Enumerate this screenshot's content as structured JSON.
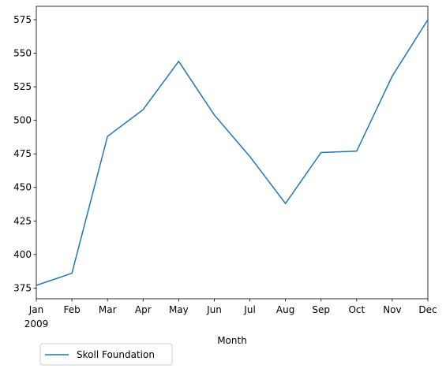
{
  "chart_data": {
    "type": "line",
    "categories": [
      "Jan",
      "Feb",
      "Mar",
      "Apr",
      "May",
      "Jun",
      "Jul",
      "Aug",
      "Sep",
      "Oct",
      "Nov",
      "Dec"
    ],
    "year_label": "2009",
    "xlabel": "Month",
    "series": [
      {
        "name": "Skoll Foundation",
        "color": "#1f77b4",
        "values": [
          377,
          386,
          488,
          508,
          544,
          504,
          473,
          438,
          476,
          477,
          533,
          575
        ]
      }
    ],
    "ylim": [
      367,
      585
    ],
    "yticks": [
      375,
      400,
      425,
      450,
      475,
      500,
      525,
      550,
      575
    ],
    "legend": "lower left outside"
  }
}
